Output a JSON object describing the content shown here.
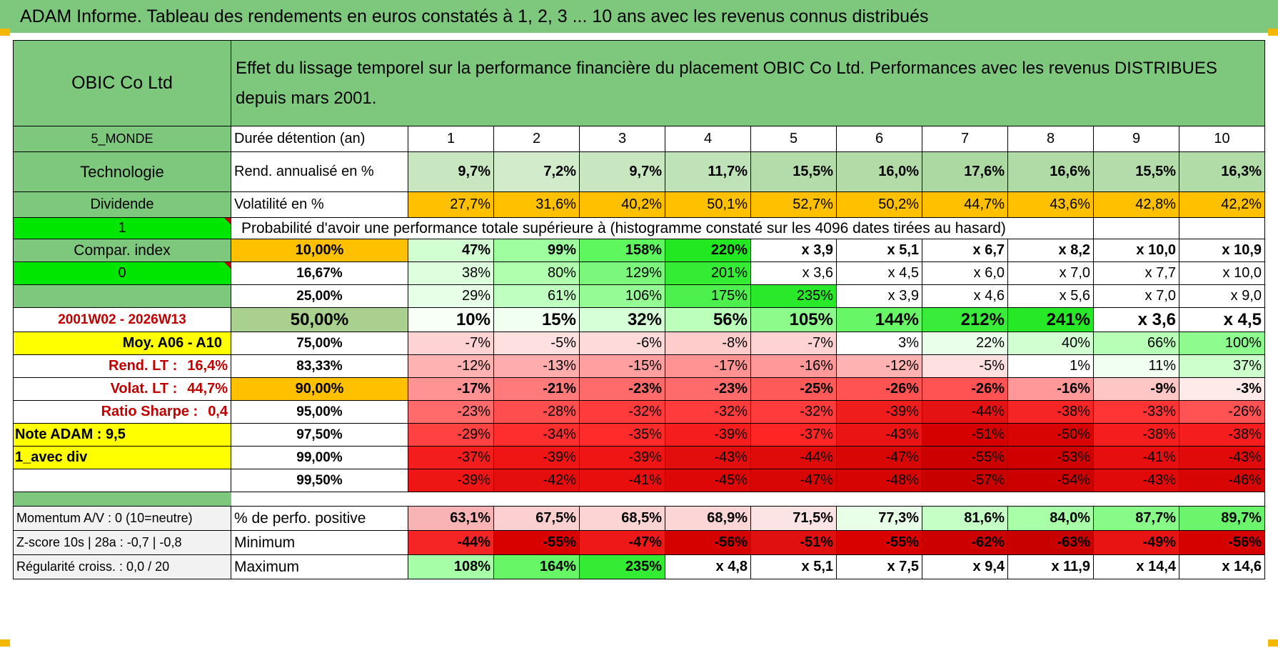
{
  "header": {
    "title": "ADAM Informe. Tableau des rendements en euros constatés à 1, 2, 3 ... 10 ans avec les revenus connus distribués"
  },
  "sidebar": {
    "company": "OBIC Co Ltd",
    "region": "5_MONDE",
    "sector": "Technologie",
    "dividend_label": "Dividende",
    "dividend_flag": "1",
    "compar_index": "Compar. index",
    "compar_flag": "0",
    "blank": "",
    "period": "2001W02 - 2026W13",
    "moy": "Moy. A06 - A10",
    "rend_lt_label": "Rend. LT :",
    "rend_lt_value": "16,4%",
    "volat_lt_label": "Volat. LT :",
    "volat_lt_value": "44,7%",
    "sharpe_label": "Ratio Sharpe :",
    "sharpe_value": "0,4",
    "note": "Note ADAM : 9,5",
    "avec_div": "1_avec div",
    "empty": ""
  },
  "description": "Effet du lissage temporel sur la performance financière du placement OBIC Co Ltd. Performances avec les revenus DISTRIBUES depuis mars 2001.",
  "stats": {
    "duration_label": "Durée détention (an)",
    "years": [
      "1",
      "2",
      "3",
      "4",
      "5",
      "6",
      "7",
      "8",
      "9",
      "10"
    ],
    "rend_label": "Rend. annualisé en %",
    "rend": [
      "9,7%",
      "7,2%",
      "9,7%",
      "11,7%",
      "15,5%",
      "16,0%",
      "17,6%",
      "16,6%",
      "15,5%",
      "16,3%"
    ],
    "vol_label": "Volatilité en %",
    "vol": [
      "27,7%",
      "31,6%",
      "40,2%",
      "50,1%",
      "52,7%",
      "50,2%",
      "44,7%",
      "43,6%",
      "42,8%",
      "42,2%"
    ]
  },
  "probability_title": "Probabilité d'avoir une performance totale supérieure à (histogramme constaté sur les 4096 dates tirées au hasard)",
  "probability_rows": [
    {
      "pct": "10,00%",
      "values": [
        "47%",
        "99%",
        "158%",
        "220%",
        "x 3,9",
        "x 5,1",
        "x 6,7",
        "x 8,2",
        "x 10,0",
        "x 10,9"
      ]
    },
    {
      "pct": "16,67%",
      "values": [
        "38%",
        "80%",
        "129%",
        "201%",
        "x 3,6",
        "x 4,5",
        "x 6,0",
        "x 7,0",
        "x 7,7",
        "x 10,0"
      ]
    },
    {
      "pct": "25,00%",
      "values": [
        "29%",
        "61%",
        "106%",
        "175%",
        "235%",
        "x 3,9",
        "x 4,6",
        "x 5,6",
        "x 7,0",
        "x 9,0"
      ]
    },
    {
      "pct": "50,00%",
      "values": [
        "10%",
        "15%",
        "32%",
        "56%",
        "105%",
        "144%",
        "212%",
        "241%",
        "x 3,6",
        "x 4,5"
      ]
    },
    {
      "pct": "75,00%",
      "values": [
        "-7%",
        "-5%",
        "-6%",
        "-8%",
        "-7%",
        "3%",
        "22%",
        "40%",
        "66%",
        "100%"
      ]
    },
    {
      "pct": "83,33%",
      "values": [
        "-12%",
        "-13%",
        "-15%",
        "-17%",
        "-16%",
        "-12%",
        "-5%",
        "1%",
        "11%",
        "37%"
      ]
    },
    {
      "pct": "90,00%",
      "values": [
        "-17%",
        "-21%",
        "-23%",
        "-23%",
        "-25%",
        "-26%",
        "-26%",
        "-16%",
        "-9%",
        "-3%"
      ]
    },
    {
      "pct": "95,00%",
      "values": [
        "-23%",
        "-28%",
        "-32%",
        "-32%",
        "-32%",
        "-39%",
        "-44%",
        "-38%",
        "-33%",
        "-26%"
      ]
    },
    {
      "pct": "97,50%",
      "values": [
        "-29%",
        "-34%",
        "-35%",
        "-39%",
        "-37%",
        "-43%",
        "-51%",
        "-50%",
        "-38%",
        "-38%"
      ]
    },
    {
      "pct": "99,00%",
      "values": [
        "-37%",
        "-39%",
        "-39%",
        "-43%",
        "-44%",
        "-47%",
        "-55%",
        "-53%",
        "-41%",
        "-43%"
      ]
    },
    {
      "pct": "99,50%",
      "values": [
        "-39%",
        "-42%",
        "-41%",
        "-45%",
        "-47%",
        "-48%",
        "-57%",
        "-54%",
        "-43%",
        "-46%"
      ]
    }
  ],
  "footer": {
    "momentum": "Momentum A/V : 0 (10=neutre)",
    "zscore": "Z-score 10s | 28a : -0,7 | -0,8",
    "regularite": "Régularité croiss. : 0,0 / 20",
    "pos_label": "% de perfo. positive",
    "pos": [
      "63,1%",
      "67,5%",
      "68,5%",
      "68,9%",
      "71,5%",
      "77,3%",
      "81,6%",
      "84,0%",
      "87,7%",
      "89,7%"
    ],
    "min_label": "Minimum",
    "min": [
      "-44%",
      "-55%",
      "-47%",
      "-56%",
      "-51%",
      "-55%",
      "-62%",
      "-63%",
      "-49%",
      "-56%"
    ],
    "max_label": "Maximum",
    "max": [
      "108%",
      "164%",
      "235%",
      "x 4,8",
      "x 5,1",
      "x 7,5",
      "x 9,4",
      "x 11,9",
      "x 14,4",
      "x 14,6"
    ]
  },
  "colors": {
    "header_green": "#7ec87e",
    "sidebar_green": "#7ec87e",
    "bright_green": "#00e600",
    "yellow": "#ffff00",
    "orange": "#ffc000",
    "light_green": "#c6e0b4",
    "red_text": "#c00000"
  },
  "cell_colors": {
    "rend": [
      "#c8e6c0",
      "#d2ebcb",
      "#c8e6c0",
      "#c0e2b8",
      "#b4dcaa",
      "#b2dba8",
      "#acd8a2",
      "#b0daa6",
      "#b4dcaa",
      "#b1dba7"
    ],
    "prob": [
      [
        "#d2ffd2",
        "#9dff9d",
        "#5ef75e",
        "#22e822",
        "#ffffff",
        "#ffffff",
        "#ffffff",
        "#ffffff",
        "#ffffff",
        "#ffffff"
      ],
      [
        "#ddffdd",
        "#afffaf",
        "#7bf87b",
        "#35ec35",
        "#ffffff",
        "#ffffff",
        "#ffffff",
        "#ffffff",
        "#ffffff",
        "#ffffff"
      ],
      [
        "#e6ffe6",
        "#bfffbf",
        "#95fb95",
        "#4ef04e",
        "#2ae82a",
        "#ffffff",
        "#ffffff",
        "#ffffff",
        "#ffffff",
        "#ffffff"
      ],
      [
        "#f7fff7",
        "#f0fff0",
        "#d7ffd7",
        "#bbffbb",
        "#8cfb8c",
        "#66f666",
        "#3aec3a",
        "#27e827",
        "#ffffff",
        "#ffffff"
      ],
      [
        "#ffd3d3",
        "#ffe0e0",
        "#ffdada",
        "#ffcccc",
        "#ffd3d3",
        "#ffffff",
        "#eaffea",
        "#d2ffd2",
        "#b7ffb7",
        "#8efb8e"
      ],
      [
        "#ffb2b2",
        "#ffacac",
        "#ff9f9f",
        "#ff9292",
        "#ff9999",
        "#ffb2b2",
        "#ffe0e0",
        "#ffffff",
        "#f0fff0",
        "#ccffcc"
      ],
      [
        "#ff9292",
        "#ff7a7a",
        "#ff6a6a",
        "#ff6a6a",
        "#ff5a5a",
        "#ff5353",
        "#ff5353",
        "#ff9999",
        "#ffc6c6",
        "#ffeaea"
      ],
      [
        "#ff6a6a",
        "#ff4e4e",
        "#ff3b3b",
        "#ff3b3b",
        "#ff3b3b",
        "#f01d1d",
        "#e41212",
        "#f52525",
        "#ff3434",
        "#ff5353"
      ],
      [
        "#ff4141",
        "#ff2e2e",
        "#ff2b2b",
        "#f51d1d",
        "#ff2525",
        "#ea1414",
        "#d50000",
        "#d80404",
        "#f51d1d",
        "#f51d1d"
      ],
      [
        "#f31d1d",
        "#ef1515",
        "#ef1515",
        "#e20e0e",
        "#df0a0a",
        "#d90606",
        "#cc0000",
        "#d00000",
        "#e60e0e",
        "#e00a0a"
      ],
      [
        "#ee1515",
        "#e50e0e",
        "#e80e0e",
        "#dd0707",
        "#d90606",
        "#d70404",
        "#c80000",
        "#cd0000",
        "#e00a0a",
        "#d80505"
      ]
    ],
    "pos": [
      "#f8b4b4",
      "#fcd0d0",
      "#fcd4d4",
      "#fcd6d6",
      "#fde4e4",
      "#e8ffe8",
      "#c6ffc6",
      "#a8ffa8",
      "#88fa88",
      "#6cf56c"
    ],
    "min": [
      "#f52525",
      "#d90000",
      "#ee1818",
      "#d50000",
      "#e01010",
      "#d90000",
      "#cc0000",
      "#c80000",
      "#e81414",
      "#d50000"
    ],
    "max": [
      "#a6ffa6",
      "#66f666",
      "#33ec33",
      "#ffffff",
      "#ffffff",
      "#ffffff",
      "#ffffff",
      "#ffffff",
      "#ffffff",
      "#ffffff"
    ]
  }
}
